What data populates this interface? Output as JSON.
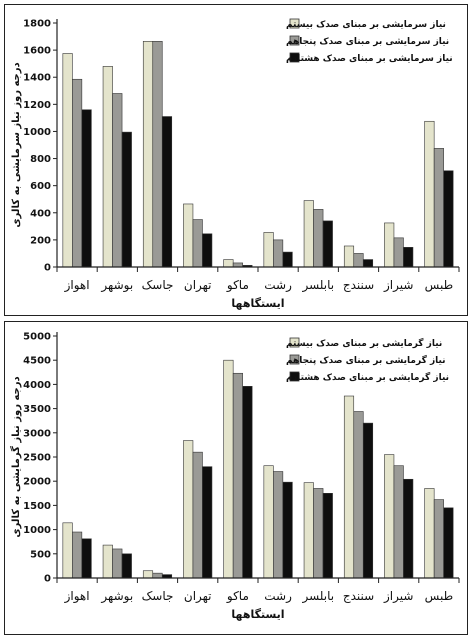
{
  "colors": {
    "series1": "#e4e4cc",
    "series2": "#9a9a96",
    "series3": "#0e0e0e",
    "axis": "#222222"
  },
  "chart_data": [
    {
      "type": "bar",
      "title": "",
      "xlabel": "ایستگاهها",
      "ylabel": "درجه روز نیاز سرمایشی به کالری",
      "ylim": [
        0,
        1800
      ],
      "yticks": [
        "0",
        "200",
        "400",
        "600",
        "800",
        "1000",
        "1200",
        "1400",
        "1600",
        "1800"
      ],
      "grid": false,
      "legend_position": "top-right",
      "categories": [
        "اهواز",
        "بوشهر",
        "جاسک",
        "تهران",
        "ماکو",
        "رشت",
        "بابلسر",
        "سنندج",
        "شیراز",
        "طبس"
      ],
      "series": [
        {
          "name": "نیاز سرمایشی بر مبنای صدک بیستم",
          "values": [
            1575,
            1480,
            1665,
            465,
            55,
            255,
            490,
            155,
            325,
            1075
          ]
        },
        {
          "name": "نیاز سرمایشی بر مبنای صدک پنجاهم",
          "values": [
            1385,
            1280,
            1665,
            350,
            30,
            200,
            425,
            100,
            215,
            875
          ]
        },
        {
          "name": "نیاز سرمایشی بر مبنای صدک هشتادم",
          "values": [
            1160,
            995,
            1110,
            245,
            12,
            110,
            340,
            55,
            145,
            710
          ]
        }
      ]
    },
    {
      "type": "bar",
      "title": "",
      "xlabel": "ایستگاهها",
      "ylabel": "درجه روز نیاز گرمایشی به کالری",
      "ylim": [
        0,
        5000
      ],
      "yticks": [
        "0",
        "500",
        "1000",
        "1500",
        "2000",
        "2500",
        "3000",
        "3500",
        "4000",
        "4500",
        "5000"
      ],
      "grid": false,
      "legend_position": "top-right",
      "categories": [
        "اهواز",
        "بوشهر",
        "جاسک",
        "تهران",
        "ماکو",
        "رشت",
        "بابلسر",
        "سنندج",
        "شیراز",
        "طبس"
      ],
      "series": [
        {
          "name": "نیاز گرمایشی بر مبنای صدک بیستم",
          "values": [
            1140,
            680,
            150,
            2840,
            4500,
            2320,
            1970,
            3760,
            2550,
            1850
          ]
        },
        {
          "name": "نیاز گرمایشی بر مبنای صدک پنجاهم",
          "values": [
            950,
            600,
            100,
            2600,
            4230,
            2200,
            1850,
            3440,
            2320,
            1620
          ]
        },
        {
          "name": "نیاز گرمایشی بر مبنای صدک هشتادم",
          "values": [
            810,
            500,
            70,
            2300,
            3960,
            1980,
            1750,
            3200,
            2040,
            1450
          ]
        }
      ]
    }
  ]
}
